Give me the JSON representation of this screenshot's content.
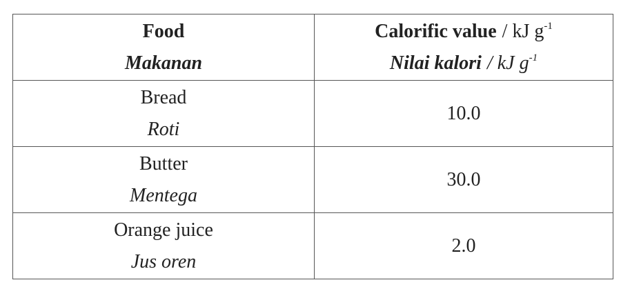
{
  "table": {
    "header": [
      {
        "en": "Food",
        "ms": "Makanan"
      },
      {
        "en": {
          "name": "Calorific value",
          "unit": "/ kJ g",
          "exp": "-1"
        },
        "ms": {
          "name": "Nilai kalori",
          "unit": "/ kJ g",
          "exp": "-1"
        }
      }
    ],
    "rows": [
      {
        "en": "Bread",
        "ms": "Roti",
        "value": "10.0"
      },
      {
        "en": "Butter",
        "ms": "Mentega",
        "value": "30.0"
      },
      {
        "en": "Orange juice",
        "ms": "Jus oren",
        "value": "2.0"
      }
    ]
  }
}
